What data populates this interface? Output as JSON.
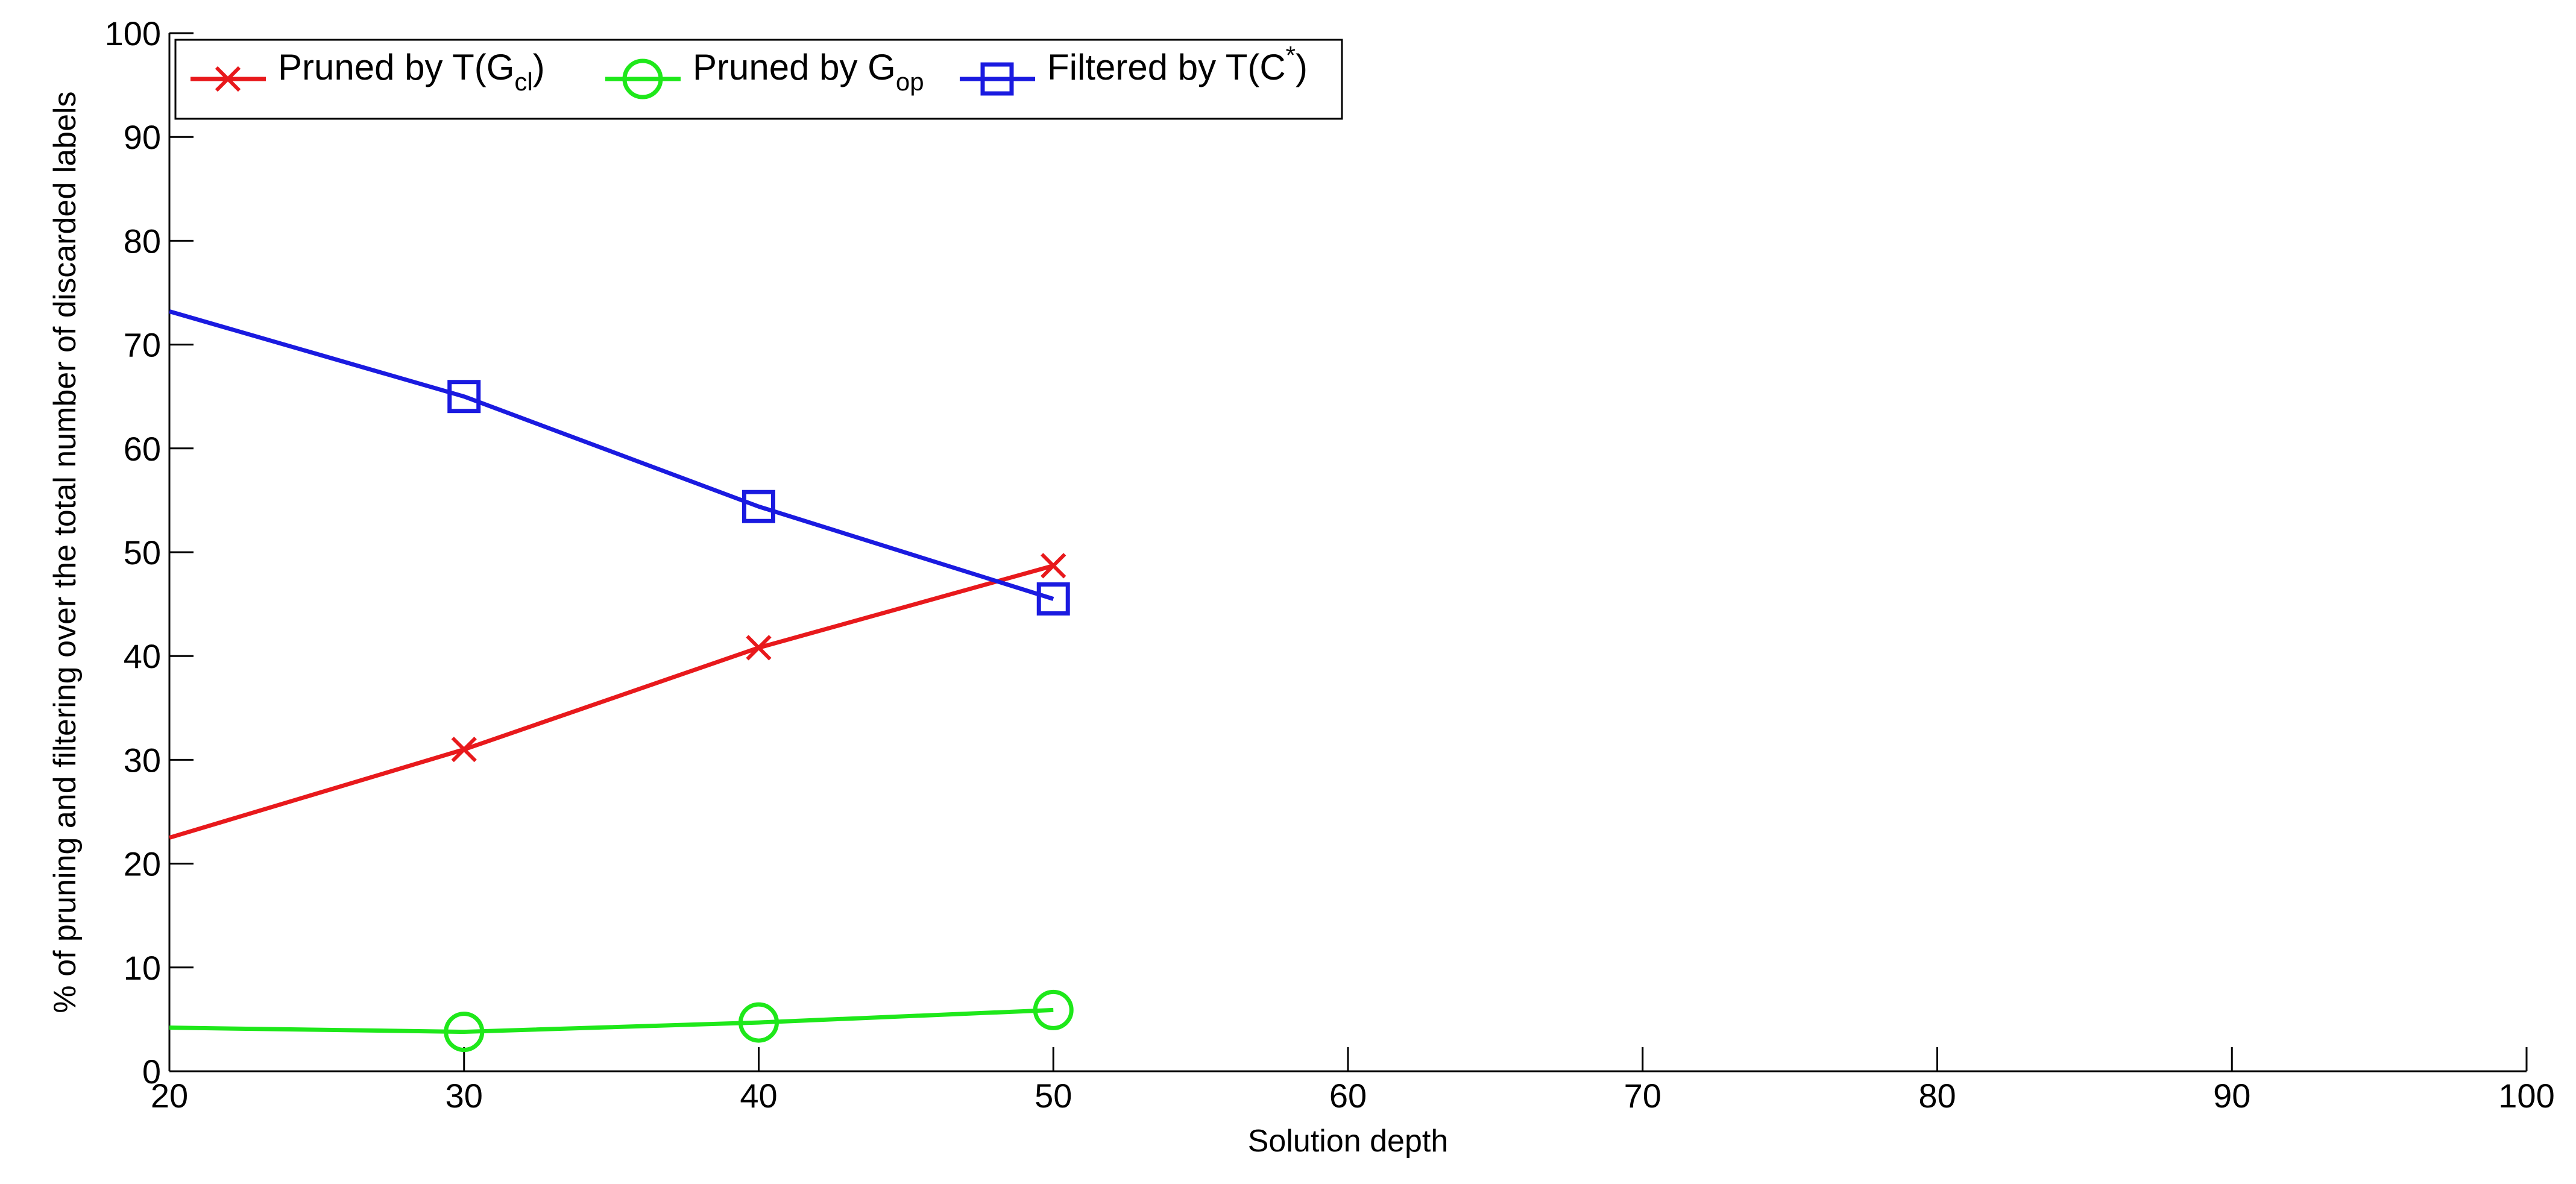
{
  "chart_data": {
    "type": "line",
    "title": "",
    "xlabel": "Solution depth",
    "ylabel": "% of pruning and filtering over the total number of discarded labels",
    "xlim": [
      20,
      100
    ],
    "ylim": [
      0,
      100
    ],
    "xticks": [
      20,
      30,
      40,
      50,
      60,
      70,
      80,
      90,
      100
    ],
    "yticks": [
      0,
      10,
      20,
      30,
      40,
      50,
      60,
      70,
      80,
      90,
      100
    ],
    "grid": false,
    "legend_position": "top-left",
    "x": [
      20,
      30,
      40,
      50
    ],
    "series": [
      {
        "name": "Pruned by T(Gcl)",
        "legend": {
          "pre": "Pruned by T(G",
          "sub": "cl",
          "post": ")"
        },
        "color": "#e8191c",
        "marker": "x",
        "marker_x": [
          30,
          40,
          50
        ],
        "values": [
          22.5,
          31.0,
          40.8,
          48.7
        ]
      },
      {
        "name": "Pruned by Gop",
        "legend": {
          "pre": "Pruned by G",
          "sub": "op",
          "post": ""
        },
        "color": "#1ee81a",
        "marker": "circle",
        "marker_x": [
          30,
          40,
          50
        ],
        "values": [
          4.2,
          3.8,
          4.7,
          5.9
        ]
      },
      {
        "name": "Filtered by T(C*)",
        "legend": {
          "pre": "Filtered by T(C",
          "sup": "*",
          "post": ")"
        },
        "color": "#1a1ae0",
        "marker": "square",
        "marker_x": [
          30,
          40,
          50
        ],
        "values": [
          73.2,
          65.0,
          54.4,
          45.5
        ]
      }
    ]
  }
}
